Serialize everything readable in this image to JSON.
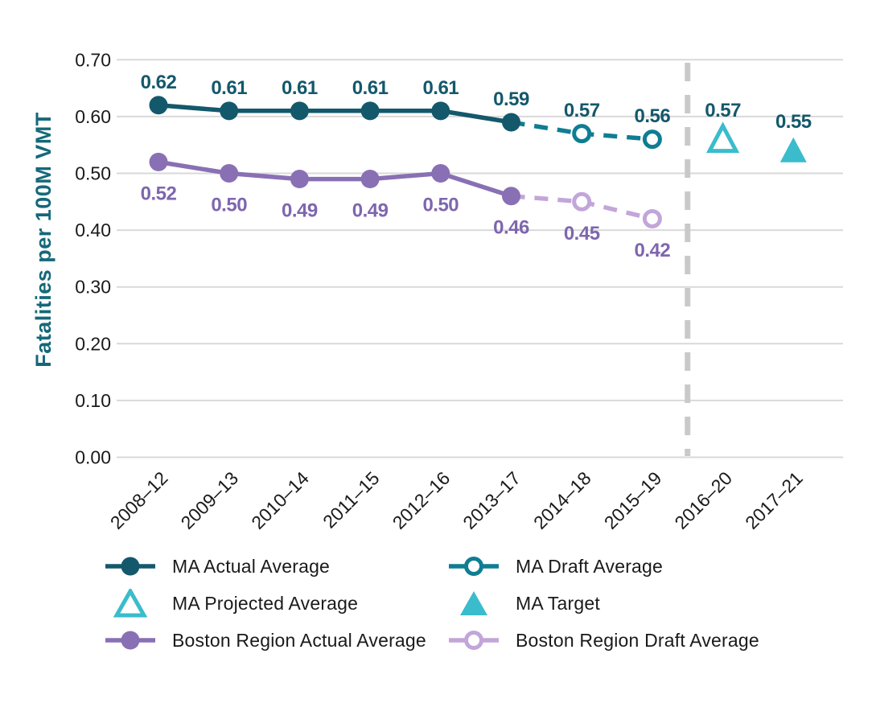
{
  "colors": {
    "ma_actual": "#14586B",
    "ma_draft": "#0F7D92",
    "ma_accent": "#3ABCCC",
    "boston_actual": "#8970B4",
    "boston_draft": "#C2A6D9",
    "label_ma": "#14586B",
    "label_boston": "#7E66AE",
    "grid": "#D9D9D9",
    "divider": "#C9C9C9",
    "axis_text": "#1A1A1A",
    "ylabel_text": "#156879",
    "background": "#FFFFFF"
  },
  "chart_data": {
    "type": "line",
    "title": "",
    "xlabel": "",
    "ylabel": "Fatalities per 100M VMT",
    "categories": [
      "2008–12",
      "2009–13",
      "2010–14",
      "2011–15",
      "2012–16",
      "2013–17",
      "2014–18",
      "2015–19",
      "2016–20",
      "2017–21"
    ],
    "ylim": [
      0.0,
      0.7
    ],
    "ytick_interval": 0.1,
    "ytick_labels": [
      "0.00",
      "0.10",
      "0.20",
      "0.30",
      "0.40",
      "0.50",
      "0.60",
      "0.70"
    ],
    "grid": "horizontal",
    "legend_position": "bottom",
    "divider_between_categories": [
      7,
      8
    ],
    "series": [
      {
        "name": "Boston Region Draft Average",
        "slug": "boston-region-draft-average",
        "color_key": "boston_draft",
        "label_color_key": "label_boston",
        "line": "dashed",
        "marker": "circle-open",
        "label_side": "below",
        "points": [
          {
            "c": 5,
            "v": 0.46,
            "anchor": true
          },
          {
            "c": 6,
            "v": 0.45,
            "label": "0.45"
          },
          {
            "c": 7,
            "v": 0.42,
            "label": "0.42"
          }
        ]
      },
      {
        "name": "Boston Region Actual Average",
        "slug": "boston-region-actual-average",
        "color_key": "boston_actual",
        "label_color_key": "label_boston",
        "line": "solid",
        "marker": "circle-filled",
        "label_side": "below",
        "points": [
          {
            "c": 0,
            "v": 0.52,
            "label": "0.52"
          },
          {
            "c": 1,
            "v": 0.5,
            "label": "0.50"
          },
          {
            "c": 2,
            "v": 0.49,
            "label": "0.49"
          },
          {
            "c": 3,
            "v": 0.49,
            "label": "0.49"
          },
          {
            "c": 4,
            "v": 0.5,
            "label": "0.50"
          },
          {
            "c": 5,
            "v": 0.46,
            "label": "0.46"
          }
        ]
      },
      {
        "name": "MA Draft Average",
        "slug": "ma-draft-average",
        "color_key": "ma_draft",
        "label_color_key": "label_ma",
        "line": "dashed",
        "marker": "circle-open",
        "label_side": "above",
        "points": [
          {
            "c": 5,
            "v": 0.59,
            "anchor": true
          },
          {
            "c": 6,
            "v": 0.57,
            "label": "0.57"
          },
          {
            "c": 7,
            "v": 0.56,
            "label": "0.56"
          }
        ]
      },
      {
        "name": "MA Actual Average",
        "slug": "ma-actual-average",
        "color_key": "ma_actual",
        "label_color_key": "label_ma",
        "line": "solid",
        "marker": "circle-filled",
        "label_side": "above",
        "points": [
          {
            "c": 0,
            "v": 0.62,
            "label": "0.62"
          },
          {
            "c": 1,
            "v": 0.61,
            "label": "0.61"
          },
          {
            "c": 2,
            "v": 0.61,
            "label": "0.61"
          },
          {
            "c": 3,
            "v": 0.61,
            "label": "0.61"
          },
          {
            "c": 4,
            "v": 0.61,
            "label": "0.61"
          },
          {
            "c": 5,
            "v": 0.59,
            "label": "0.59"
          }
        ]
      },
      {
        "name": "MA Projected Average",
        "slug": "ma-projected-average",
        "color_key": "ma_accent",
        "label_color_key": "label_ma",
        "line": "none",
        "marker": "triangle-open",
        "label_side": "above",
        "points": [
          {
            "c": 8,
            "v": 0.57,
            "label": "0.57"
          }
        ]
      },
      {
        "name": "MA Target",
        "slug": "ma-target",
        "color_key": "ma_accent",
        "label_color_key": "label_ma",
        "line": "none",
        "marker": "triangle-filled",
        "label_side": "above",
        "points": [
          {
            "c": 9,
            "v": 0.55,
            "label": "0.55"
          }
        ]
      }
    ]
  },
  "legend": {
    "columns": [
      {
        "items": [
          {
            "label": "MA Actual Average",
            "marker": "line-circle-filled",
            "color_key": "ma_actual"
          },
          {
            "label": "MA Projected Average",
            "marker": "triangle-open",
            "color_key": "ma_accent"
          },
          {
            "label": "Boston Region Actual Average",
            "marker": "line-circle-filled",
            "color_key": "boston_actual"
          }
        ]
      },
      {
        "items": [
          {
            "label": "MA Draft Average",
            "marker": "line-circle-open",
            "color_key": "ma_draft"
          },
          {
            "label": "MA Target",
            "marker": "triangle-filled",
            "color_key": "ma_accent"
          },
          {
            "label": "Boston Region Draft Average",
            "marker": "line-circle-open",
            "color_key": "boston_draft"
          }
        ]
      }
    ]
  }
}
